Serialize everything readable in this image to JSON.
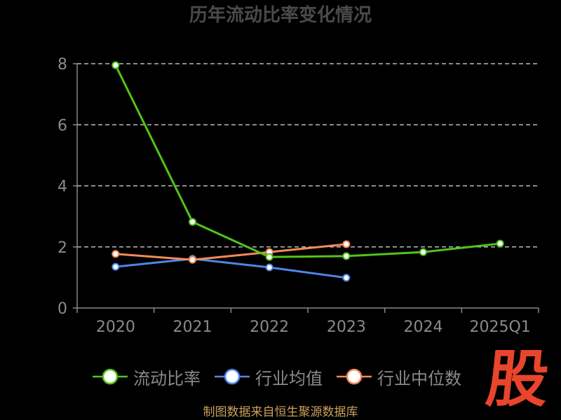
{
  "title": "历年流动比率变化情况",
  "footer": "制图数据来自恒生聚源数据库",
  "logo": "股",
  "colors": {
    "background": "#000000",
    "grid": "#dddddd",
    "axis": "#888888",
    "tick_label": "#8a8a8a",
    "logo": "#e8452c",
    "footer": "#c9a25a"
  },
  "chart_data": {
    "type": "line",
    "title": "历年流动比率变化情况",
    "xlabel": "",
    "ylabel": "",
    "categories": [
      "2020",
      "2021",
      "2022",
      "2023",
      "2024",
      "2025Q1"
    ],
    "ylim": [
      0,
      8
    ],
    "yticks": [
      "0",
      "2",
      "4",
      "6",
      "8"
    ],
    "grid": true,
    "legend": "bottom",
    "series": [
      {
        "name": "流动比率",
        "color": "#52c41a",
        "values": [
          7.95,
          2.82,
          1.67,
          1.7,
          1.83,
          2.11
        ]
      },
      {
        "name": "行业均值",
        "color": "#4f86e8",
        "values": [
          1.35,
          1.61,
          1.33,
          0.99,
          null,
          null
        ]
      },
      {
        "name": "行业中位数",
        "color": "#f58a5a",
        "values": [
          1.77,
          1.58,
          1.83,
          2.09,
          null,
          null
        ]
      }
    ]
  }
}
